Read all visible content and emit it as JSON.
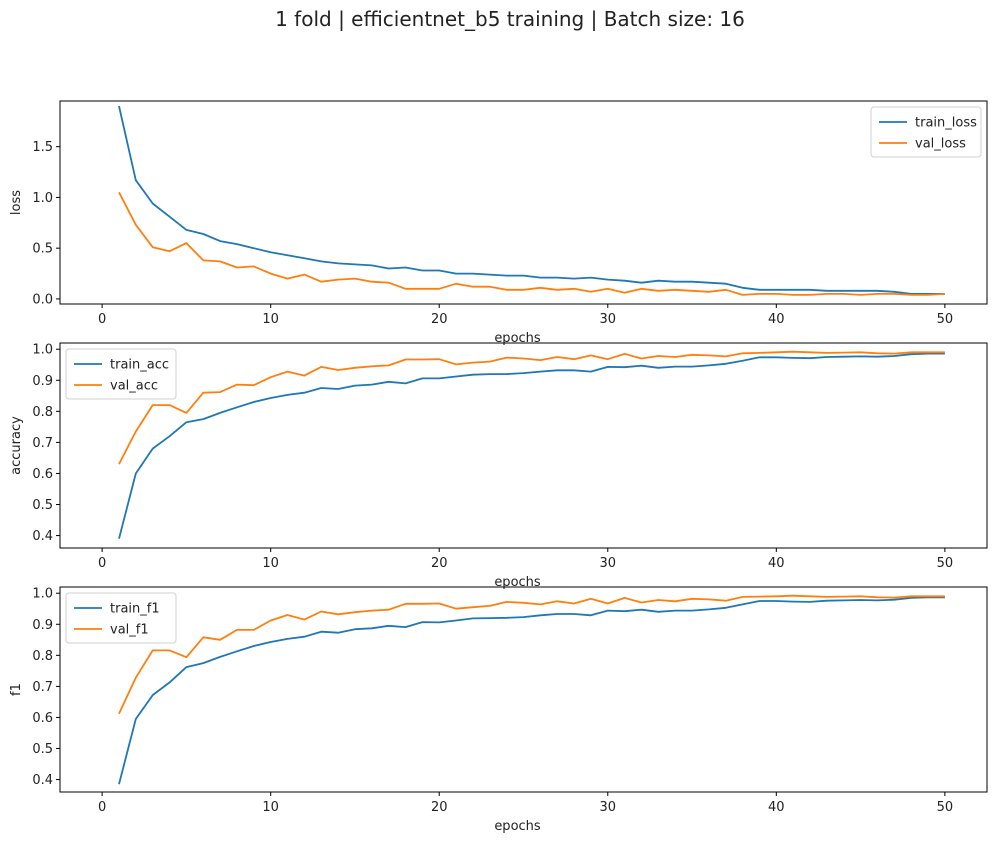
{
  "title": "1 fold | efficientnet_b5 training | Batch size: 16",
  "colors": {
    "train": "#1f77b4",
    "val": "#ff7f0e"
  },
  "chart_data": [
    {
      "type": "line",
      "xlabel": "epochs",
      "ylabel": "loss",
      "xlim": [
        -2.5,
        52.5
      ],
      "ylim": [
        -0.05,
        1.95
      ],
      "xticks": [
        0,
        10,
        20,
        30,
        40,
        50
      ],
      "yticks": [
        0.0,
        0.5,
        1.0,
        1.5
      ],
      "ytick_labels": [
        "0.0",
        "0.5",
        "1.0",
        "1.5"
      ],
      "grid": false,
      "legend": "upper right",
      "x": [
        1,
        2,
        3,
        4,
        5,
        6,
        7,
        8,
        9,
        10,
        11,
        12,
        13,
        14,
        15,
        16,
        17,
        18,
        19,
        20,
        21,
        22,
        23,
        24,
        25,
        26,
        27,
        28,
        29,
        30,
        31,
        32,
        33,
        34,
        35,
        36,
        37,
        38,
        39,
        40,
        41,
        42,
        43,
        44,
        45,
        46,
        47,
        48,
        49,
        50
      ],
      "series": [
        {
          "name": "train_loss",
          "color": "#1f77b4",
          "values": [
            1.9,
            1.17,
            0.94,
            0.81,
            0.68,
            0.64,
            0.57,
            0.54,
            0.5,
            0.46,
            0.43,
            0.4,
            0.37,
            0.35,
            0.34,
            0.33,
            0.3,
            0.31,
            0.28,
            0.28,
            0.25,
            0.25,
            0.24,
            0.23,
            0.23,
            0.21,
            0.21,
            0.2,
            0.21,
            0.19,
            0.18,
            0.16,
            0.18,
            0.17,
            0.17,
            0.16,
            0.15,
            0.11,
            0.09,
            0.09,
            0.09,
            0.09,
            0.08,
            0.08,
            0.08,
            0.08,
            0.07,
            0.05,
            0.05,
            0.05
          ]
        },
        {
          "name": "val_loss",
          "color": "#ff7f0e",
          "values": [
            1.05,
            0.73,
            0.51,
            0.47,
            0.55,
            0.38,
            0.37,
            0.31,
            0.32,
            0.25,
            0.2,
            0.24,
            0.17,
            0.19,
            0.2,
            0.17,
            0.16,
            0.1,
            0.1,
            0.1,
            0.15,
            0.12,
            0.12,
            0.09,
            0.09,
            0.11,
            0.09,
            0.1,
            0.07,
            0.1,
            0.06,
            0.1,
            0.08,
            0.09,
            0.08,
            0.07,
            0.09,
            0.04,
            0.05,
            0.05,
            0.04,
            0.04,
            0.05,
            0.05,
            0.04,
            0.05,
            0.05,
            0.04,
            0.04,
            0.05
          ]
        }
      ]
    },
    {
      "type": "line",
      "xlabel": "epochs",
      "ylabel": "accuracy",
      "xlim": [
        -2.5,
        52.5
      ],
      "ylim": [
        0.36,
        1.02
      ],
      "xticks": [
        0,
        10,
        20,
        30,
        40,
        50
      ],
      "yticks": [
        0.4,
        0.5,
        0.6,
        0.7,
        0.8,
        0.9,
        1.0
      ],
      "ytick_labels": [
        "0.4",
        "0.5",
        "0.6",
        "0.7",
        "0.8",
        "0.9",
        "1.0"
      ],
      "grid": false,
      "legend": "upper left",
      "x": [
        1,
        2,
        3,
        4,
        5,
        6,
        7,
        8,
        9,
        10,
        11,
        12,
        13,
        14,
        15,
        16,
        17,
        18,
        19,
        20,
        21,
        22,
        23,
        24,
        25,
        26,
        27,
        28,
        29,
        30,
        31,
        32,
        33,
        34,
        35,
        36,
        37,
        38,
        39,
        40,
        41,
        42,
        43,
        44,
        45,
        46,
        47,
        48,
        49,
        50
      ],
      "series": [
        {
          "name": "train_acc",
          "color": "#1f77b4",
          "values": [
            0.39,
            0.6,
            0.68,
            0.72,
            0.765,
            0.775,
            0.795,
            0.813,
            0.83,
            0.843,
            0.853,
            0.86,
            0.875,
            0.872,
            0.883,
            0.886,
            0.895,
            0.89,
            0.906,
            0.906,
            0.912,
            0.918,
            0.92,
            0.92,
            0.923,
            0.928,
            0.932,
            0.932,
            0.928,
            0.943,
            0.942,
            0.947,
            0.94,
            0.944,
            0.944,
            0.948,
            0.953,
            0.963,
            0.974,
            0.974,
            0.972,
            0.971,
            0.975,
            0.976,
            0.977,
            0.976,
            0.978,
            0.984,
            0.986,
            0.986
          ]
        },
        {
          "name": "val_acc",
          "color": "#ff7f0e",
          "values": [
            0.63,
            0.735,
            0.82,
            0.82,
            0.795,
            0.86,
            0.862,
            0.886,
            0.884,
            0.91,
            0.928,
            0.915,
            0.943,
            0.933,
            0.94,
            0.945,
            0.948,
            0.967,
            0.967,
            0.968,
            0.951,
            0.957,
            0.96,
            0.973,
            0.97,
            0.965,
            0.975,
            0.968,
            0.98,
            0.968,
            0.985,
            0.97,
            0.978,
            0.975,
            0.982,
            0.98,
            0.977,
            0.987,
            0.988,
            0.99,
            0.992,
            0.99,
            0.988,
            0.989,
            0.99,
            0.987,
            0.986,
            0.99,
            0.99,
            0.99
          ]
        }
      ]
    },
    {
      "type": "line",
      "xlabel": "epochs",
      "ylabel": "f1",
      "xlim": [
        -2.5,
        52.5
      ],
      "ylim": [
        0.36,
        1.02
      ],
      "xticks": [
        0,
        10,
        20,
        30,
        40,
        50
      ],
      "yticks": [
        0.4,
        0.5,
        0.6,
        0.7,
        0.8,
        0.9,
        1.0
      ],
      "ytick_labels": [
        "0.4",
        "0.5",
        "0.6",
        "0.7",
        "0.8",
        "0.9",
        "1.0"
      ],
      "grid": false,
      "legend": "upper left",
      "x": [
        1,
        2,
        3,
        4,
        5,
        6,
        7,
        8,
        9,
        10,
        11,
        12,
        13,
        14,
        15,
        16,
        17,
        18,
        19,
        20,
        21,
        22,
        23,
        24,
        25,
        26,
        27,
        28,
        29,
        30,
        31,
        32,
        33,
        34,
        35,
        36,
        37,
        38,
        39,
        40,
        41,
        42,
        43,
        44,
        45,
        46,
        47,
        48,
        49,
        50
      ],
      "series": [
        {
          "name": "train_f1",
          "color": "#1f77b4",
          "values": [
            0.385,
            0.595,
            0.672,
            0.713,
            0.762,
            0.775,
            0.795,
            0.813,
            0.83,
            0.843,
            0.853,
            0.86,
            0.876,
            0.873,
            0.884,
            0.887,
            0.895,
            0.891,
            0.907,
            0.906,
            0.912,
            0.919,
            0.92,
            0.921,
            0.923,
            0.929,
            0.933,
            0.933,
            0.929,
            0.944,
            0.942,
            0.947,
            0.94,
            0.944,
            0.944,
            0.948,
            0.953,
            0.964,
            0.975,
            0.975,
            0.973,
            0.972,
            0.976,
            0.977,
            0.978,
            0.977,
            0.979,
            0.985,
            0.987,
            0.987
          ]
        },
        {
          "name": "val_f1",
          "color": "#ff7f0e",
          "values": [
            0.612,
            0.728,
            0.816,
            0.816,
            0.794,
            0.858,
            0.85,
            0.882,
            0.882,
            0.912,
            0.93,
            0.915,
            0.941,
            0.932,
            0.939,
            0.944,
            0.947,
            0.966,
            0.966,
            0.967,
            0.95,
            0.955,
            0.959,
            0.972,
            0.969,
            0.964,
            0.974,
            0.967,
            0.982,
            0.967,
            0.985,
            0.97,
            0.978,
            0.974,
            0.982,
            0.98,
            0.976,
            0.988,
            0.989,
            0.99,
            0.992,
            0.99,
            0.988,
            0.989,
            0.99,
            0.987,
            0.986,
            0.99,
            0.99,
            0.99
          ]
        }
      ]
    }
  ]
}
